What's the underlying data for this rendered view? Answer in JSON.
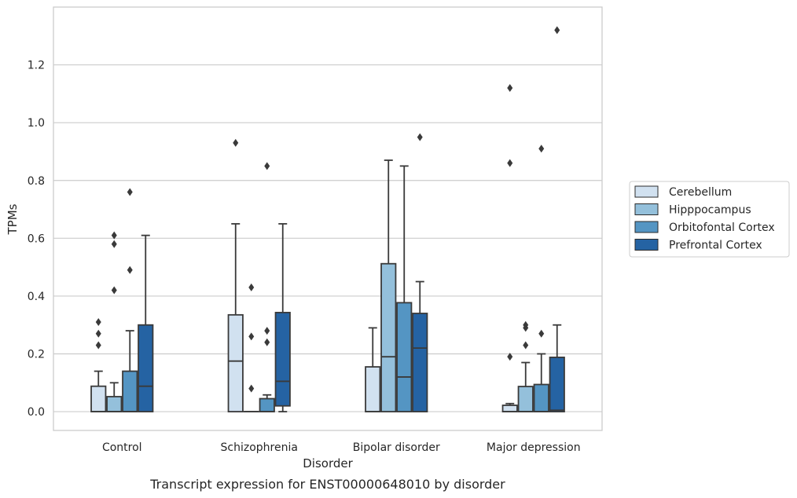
{
  "chart_data": {
    "type": "box",
    "title": "",
    "caption": "Transcript expression for ENST00000648010 by disorder",
    "xlabel": "Disorder",
    "ylabel": "TPMs",
    "ylim": [
      -0.065,
      1.4
    ],
    "yticks": [
      "0.0",
      "0.2",
      "0.4",
      "0.6",
      "0.8",
      "1.0",
      "1.2"
    ],
    "grid": true,
    "legend_position": "right",
    "categories": [
      "Control",
      "Schizophrenia",
      "Bipolar disorder",
      "Major depression"
    ],
    "series": [
      {
        "name": "Cerebellum",
        "color": "#d1e1f0",
        "boxes": [
          {
            "whislo": 0.0,
            "q1": 0.0,
            "med": 0.0,
            "q3": 0.088,
            "whishi": 0.14,
            "fliers": [
              0.31,
              0.27,
              0.23
            ]
          },
          {
            "whislo": 0.0,
            "q1": 0.0,
            "med": 0.175,
            "q3": 0.335,
            "whishi": 0.65,
            "fliers": [
              0.93
            ]
          },
          {
            "whislo": 0.0,
            "q1": 0.0,
            "med": 0.0,
            "q3": 0.155,
            "whishi": 0.29,
            "fliers": []
          },
          {
            "whislo": 0.0,
            "q1": 0.0,
            "med": 0.0,
            "q3": 0.022,
            "whishi": 0.028,
            "fliers": [
              0.19,
              0.86,
              1.12
            ]
          }
        ]
      },
      {
        "name": "Hipppocampus",
        "color": "#94c0db",
        "boxes": [
          {
            "whislo": 0.0,
            "q1": 0.0,
            "med": 0.0,
            "q3": 0.052,
            "whishi": 0.1,
            "fliers": [
              0.42,
              0.58,
              0.61
            ]
          },
          {
            "whislo": 0.0,
            "q1": 0.0,
            "med": 0.0,
            "q3": 0.0,
            "whishi": 0.0,
            "fliers": [
              0.08,
              0.26,
              0.43
            ]
          },
          {
            "whislo": 0.0,
            "q1": 0.0,
            "med": 0.19,
            "q3": 0.512,
            "whishi": 0.87,
            "fliers": []
          },
          {
            "whislo": 0.0,
            "q1": 0.0,
            "med": 0.0,
            "q3": 0.087,
            "whishi": 0.17,
            "fliers": [
              0.23,
              0.29,
              0.3
            ]
          }
        ]
      },
      {
        "name": "Orbitofontal Cortex",
        "color": "#5495c3",
        "boxes": [
          {
            "whislo": 0.0,
            "q1": 0.0,
            "med": 0.0,
            "q3": 0.14,
            "whishi": 0.28,
            "fliers": [
              0.49,
              0.76
            ]
          },
          {
            "whislo": 0.0,
            "q1": 0.0,
            "med": 0.0,
            "q3": 0.045,
            "whishi": 0.058,
            "fliers": [
              0.24,
              0.28,
              0.85
            ]
          },
          {
            "whislo": 0.0,
            "q1": 0.0,
            "med": 0.12,
            "q3": 0.377,
            "whishi": 0.85,
            "fliers": []
          },
          {
            "whislo": 0.0,
            "q1": 0.0,
            "med": 0.0,
            "q3": 0.094,
            "whishi": 0.2,
            "fliers": [
              0.27,
              0.91
            ]
          }
        ]
      },
      {
        "name": "Prefrontal Cortex",
        "color": "#2563a3",
        "boxes": [
          {
            "whislo": 0.0,
            "q1": 0.0,
            "med": 0.088,
            "q3": 0.3,
            "whishi": 0.61,
            "fliers": []
          },
          {
            "whislo": 0.0,
            "q1": 0.02,
            "med": 0.105,
            "q3": 0.343,
            "whishi": 0.65,
            "fliers": []
          },
          {
            "whislo": 0.0,
            "q1": 0.0,
            "med": 0.22,
            "q3": 0.34,
            "whishi": 0.45,
            "fliers": [
              0.95
            ]
          },
          {
            "whislo": 0.0,
            "q1": 0.0,
            "med": 0.005,
            "q3": 0.188,
            "whishi": 0.3,
            "fliers": [
              1.32
            ]
          }
        ]
      }
    ]
  }
}
